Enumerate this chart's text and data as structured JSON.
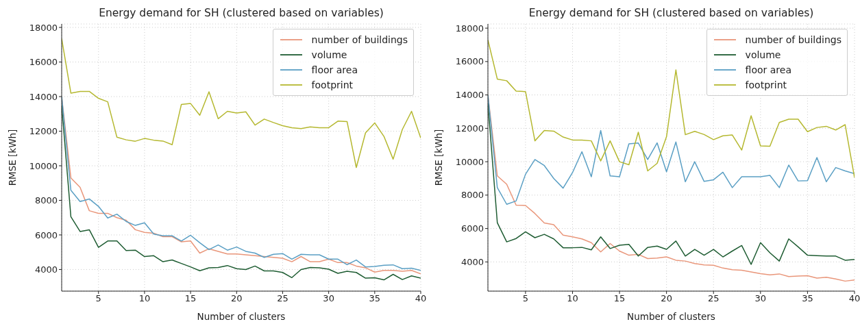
{
  "chart_data": [
    {
      "type": "line",
      "title": "Energy demand for SH (clustered based on variables)",
      "xlabel": "Number of clusters",
      "ylabel": "RMSE [kWh]",
      "x": [
        1,
        2,
        3,
        4,
        5,
        6,
        7,
        8,
        9,
        10,
        11,
        12,
        13,
        14,
        15,
        16,
        17,
        18,
        19,
        20,
        21,
        22,
        23,
        24,
        25,
        26,
        27,
        28,
        29,
        30,
        31,
        32,
        33,
        34,
        35,
        36,
        37,
        38,
        39,
        40
      ],
      "xlim": [
        1,
        40
      ],
      "xticks": [
        5,
        10,
        15,
        20,
        25,
        30,
        35,
        40
      ],
      "ylim": [
        2750,
        18200
      ],
      "yticks": [
        4000,
        6000,
        8000,
        10000,
        12000,
        14000,
        16000,
        18000
      ],
      "grid": true,
      "legend": "top right",
      "line_style": "solid",
      "marker": "none",
      "series": [
        {
          "name": "number of buildings",
          "color": "#e9967a",
          "values": [
            14000,
            9300,
            8750,
            7400,
            7250,
            7250,
            7000,
            6850,
            6300,
            6150,
            6100,
            5900,
            5900,
            5600,
            5650,
            4950,
            5200,
            5050,
            4900,
            4900,
            4850,
            4800,
            4750,
            4700,
            4650,
            4450,
            4750,
            4450,
            4450,
            4600,
            4400,
            4400,
            4200,
            4100,
            3850,
            3950,
            3950,
            3900,
            3950,
            3750
          ]
        },
        {
          "name": "volume",
          "color": "#1e5c32",
          "values": [
            13500,
            7050,
            6200,
            6300,
            5280,
            5650,
            5650,
            5100,
            5120,
            4750,
            4800,
            4450,
            4550,
            4350,
            4150,
            3930,
            4100,
            4120,
            4230,
            4050,
            4000,
            4200,
            3920,
            3920,
            3830,
            3530,
            4000,
            4120,
            4100,
            4020,
            3780,
            3900,
            3830,
            3500,
            3520,
            3400,
            3720,
            3420,
            3630,
            3500
          ]
        },
        {
          "name": "floor area",
          "color": "#5a9fc4",
          "values": [
            14000,
            8580,
            7930,
            8080,
            7650,
            6980,
            7200,
            6780,
            6550,
            6700,
            6050,
            5950,
            5950,
            5650,
            5980,
            5550,
            5150,
            5420,
            5120,
            5300,
            5050,
            4950,
            4700,
            4880,
            4920,
            4600,
            4880,
            4850,
            4850,
            4600,
            4600,
            4280,
            4550,
            4150,
            4180,
            4250,
            4270,
            4050,
            4080,
            3950
          ]
        },
        {
          "name": "footprint",
          "color": "#b5b830",
          "values": [
            17350,
            14200,
            14300,
            14300,
            13900,
            13700,
            11650,
            11500,
            11420,
            11580,
            11480,
            11430,
            11220,
            13550,
            13600,
            12920,
            14280,
            12720,
            13150,
            13050,
            13120,
            12350,
            12700,
            12500,
            12320,
            12200,
            12150,
            12250,
            12200,
            12200,
            12580,
            12550,
            9900,
            11900,
            12480,
            11700,
            10380,
            12100,
            13150,
            11600
          ]
        }
      ]
    },
    {
      "type": "line",
      "title": "Energy demand for SH (clustered based on variables)",
      "xlabel": "Number of clusters",
      "ylabel": "RMSE [kWh]",
      "x": [
        1,
        2,
        3,
        4,
        5,
        6,
        7,
        8,
        9,
        10,
        11,
        12,
        13,
        14,
        15,
        16,
        17,
        18,
        19,
        20,
        21,
        22,
        23,
        24,
        25,
        26,
        27,
        28,
        29,
        30,
        31,
        32,
        33,
        34,
        35,
        36,
        37,
        38,
        39,
        40
      ],
      "xlim": [
        1,
        40
      ],
      "xticks": [
        5,
        10,
        15,
        20,
        25,
        30,
        35,
        40
      ],
      "ylim": [
        2250,
        18250
      ],
      "yticks": [
        4000,
        6000,
        8000,
        10000,
        12000,
        14000,
        16000,
        18000
      ],
      "grid": true,
      "legend": "top right",
      "line_style": "solid",
      "marker": "none",
      "series": [
        {
          "name": "number of buildings",
          "color": "#e9967a",
          "values": [
            14000,
            9150,
            8650,
            7400,
            7380,
            6900,
            6330,
            6230,
            5600,
            5500,
            5380,
            5150,
            4600,
            5100,
            4650,
            4400,
            4450,
            4200,
            4230,
            4300,
            4100,
            4050,
            3900,
            3820,
            3800,
            3630,
            3530,
            3500,
            3400,
            3300,
            3220,
            3280,
            3120,
            3150,
            3170,
            3030,
            3080,
            2980,
            2850,
            2920
          ]
        },
        {
          "name": "volume",
          "color": "#1e5c32",
          "values": [
            13500,
            6350,
            5200,
            5400,
            5800,
            5450,
            5650,
            5380,
            4850,
            4850,
            4870,
            4720,
            5500,
            4800,
            5000,
            5050,
            4350,
            4870,
            4950,
            4750,
            5250,
            4350,
            4750,
            4400,
            4750,
            4300,
            4650,
            4980,
            3850,
            5150,
            4550,
            4050,
            5380,
            4900,
            4400,
            4370,
            4350,
            4350,
            4100,
            4150
          ]
        },
        {
          "name": "floor area",
          "color": "#5a9fc4",
          "values": [
            14000,
            8450,
            7450,
            7650,
            9250,
            10130,
            9770,
            9000,
            8420,
            9350,
            10600,
            9100,
            11870,
            9150,
            9100,
            11070,
            11120,
            10130,
            11130,
            9400,
            11180,
            8800,
            10000,
            8820,
            8920,
            9370,
            8450,
            9100,
            9100,
            9100,
            9180,
            8450,
            9800,
            8850,
            8870,
            10250,
            8800,
            9650,
            9450,
            9280
          ]
        },
        {
          "name": "footprint",
          "color": "#b5b830",
          "values": [
            17300,
            14950,
            14850,
            14230,
            14200,
            11250,
            11870,
            11830,
            11480,
            11300,
            11300,
            11250,
            10050,
            11250,
            10000,
            9820,
            11770,
            9450,
            9900,
            11500,
            15500,
            11620,
            11820,
            11630,
            11320,
            11550,
            11600,
            10700,
            12750,
            10950,
            10930,
            12350,
            12550,
            12550,
            11800,
            12050,
            12120,
            11900,
            12220,
            9050
          ]
        }
      ]
    }
  ]
}
